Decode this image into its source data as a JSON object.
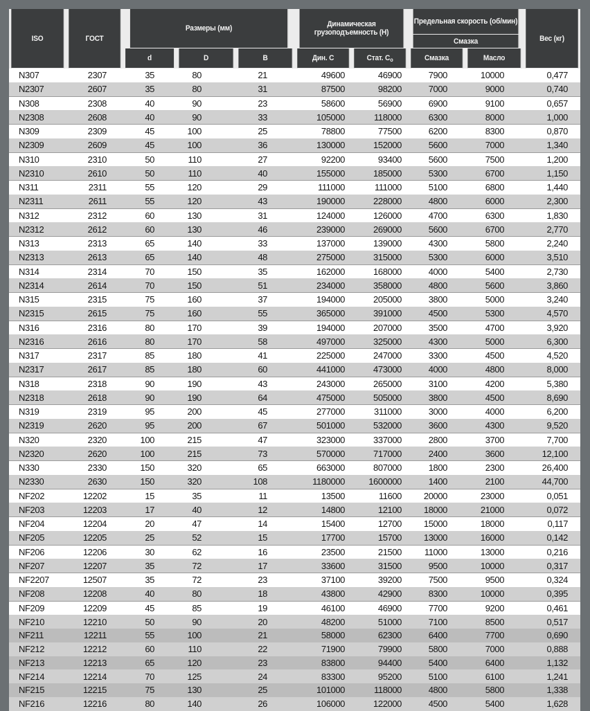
{
  "header": {
    "iso": "ISO",
    "gost": "ГОСТ",
    "dims": "Размеры (мм)",
    "d": "d",
    "D": "D",
    "B": "B",
    "load": "Динамическая грузоподъемность (Н)",
    "dyn": "Дин. C",
    "stat": "Стат. C",
    "stat_sub": "о",
    "speed": "Предельная скорость (об/мин)",
    "grease_group": "Смазка",
    "grease": "Смазка",
    "oil": "Масло",
    "weight": "Вес (кг)"
  },
  "rows": [
    [
      "N307",
      "2307",
      "35",
      "80",
      "21",
      "49600",
      "46900",
      "7900",
      "10000",
      "0,477"
    ],
    [
      "N2307",
      "2607",
      "35",
      "80",
      "31",
      "87500",
      "98200",
      "7000",
      "9000",
      "0,740"
    ],
    [
      "N308",
      "2308",
      "40",
      "90",
      "23",
      "58600",
      "56900",
      "6900",
      "9100",
      "0,657"
    ],
    [
      "N2308",
      "2608",
      "40",
      "90",
      "33",
      "105000",
      "118000",
      "6300",
      "8000",
      "1,000"
    ],
    [
      "N309",
      "2309",
      "45",
      "100",
      "25",
      "78800",
      "77500",
      "6200",
      "8300",
      "0,870"
    ],
    [
      "N2309",
      "2609",
      "45",
      "100",
      "36",
      "130000",
      "152000",
      "5600",
      "7000",
      "1,340"
    ],
    [
      "N310",
      "2310",
      "50",
      "110",
      "27",
      "92200",
      "93400",
      "5600",
      "7500",
      "1,200"
    ],
    [
      "N2310",
      "2610",
      "50",
      "110",
      "40",
      "155000",
      "185000",
      "5300",
      "6700",
      "1,150"
    ],
    [
      "N311",
      "2311",
      "55",
      "120",
      "29",
      "111000",
      "111000",
      "5100",
      "6800",
      "1,440"
    ],
    [
      "N2311",
      "2611",
      "55",
      "120",
      "43",
      "190000",
      "228000",
      "4800",
      "6000",
      "2,300"
    ],
    [
      "N312",
      "2312",
      "60",
      "130",
      "31",
      "124000",
      "126000",
      "4700",
      "6300",
      "1,830"
    ],
    [
      "N2312",
      "2612",
      "60",
      "130",
      "46",
      "239000",
      "269000",
      "5600",
      "6700",
      "2,770"
    ],
    [
      "N313",
      "2313",
      "65",
      "140",
      "33",
      "137000",
      "139000",
      "4300",
      "5800",
      "2,240"
    ],
    [
      "N2313",
      "2613",
      "65",
      "140",
      "48",
      "275000",
      "315000",
      "5300",
      "6000",
      "3,510"
    ],
    [
      "N314",
      "2314",
      "70",
      "150",
      "35",
      "162000",
      "168000",
      "4000",
      "5400",
      "2,730"
    ],
    [
      "N2314",
      "2614",
      "70",
      "150",
      "51",
      "234000",
      "358000",
      "4800",
      "5600",
      "3,860"
    ],
    [
      "N315",
      "2315",
      "75",
      "160",
      "37",
      "194000",
      "205000",
      "3800",
      "5000",
      "3,240"
    ],
    [
      "N2315",
      "2615",
      "75",
      "160",
      "55",
      "365000",
      "391000",
      "4500",
      "5300",
      "4,570"
    ],
    [
      "N316",
      "2316",
      "80",
      "170",
      "39",
      "194000",
      "207000",
      "3500",
      "4700",
      "3,920"
    ],
    [
      "N2316",
      "2616",
      "80",
      "170",
      "58",
      "497000",
      "325000",
      "4300",
      "5000",
      "6,300"
    ],
    [
      "N317",
      "2317",
      "85",
      "180",
      "41",
      "225000",
      "247000",
      "3300",
      "4500",
      "4,520"
    ],
    [
      "N2317",
      "2617",
      "85",
      "180",
      "60",
      "441000",
      "473000",
      "4000",
      "4800",
      "8,000"
    ],
    [
      "N318",
      "2318",
      "90",
      "190",
      "43",
      "243000",
      "265000",
      "3100",
      "4200",
      "5,380"
    ],
    [
      "N2318",
      "2618",
      "90",
      "190",
      "64",
      "475000",
      "505000",
      "3800",
      "4500",
      "8,690"
    ],
    [
      "N319",
      "2319",
      "95",
      "200",
      "45",
      "277000",
      "311000",
      "3000",
      "4000",
      "6,200"
    ],
    [
      "N2319",
      "2620",
      "95",
      "200",
      "67",
      "501000",
      "532000",
      "3600",
      "4300",
      "9,520"
    ],
    [
      "N320",
      "2320",
      "100",
      "215",
      "47",
      "323000",
      "337000",
      "2800",
      "3700",
      "7,700"
    ],
    [
      "N2320",
      "2620",
      "100",
      "215",
      "73",
      "570000",
      "717000",
      "2400",
      "3600",
      "12,100"
    ],
    [
      "N330",
      "2330",
      "150",
      "320",
      "65",
      "663000",
      "807000",
      "1800",
      "2300",
      "26,400"
    ],
    [
      "N2330",
      "2630",
      "150",
      "320",
      "108",
      "1180000",
      "1600000",
      "1400",
      "2100",
      "44,700"
    ],
    [
      "NF202",
      "12202",
      "15",
      "35",
      "11",
      "13500",
      "11600",
      "20000",
      "23000",
      "0,051"
    ],
    [
      "NF203",
      "12203",
      "17",
      "40",
      "12",
      "14800",
      "12100",
      "18000",
      "21000",
      "0,072"
    ],
    [
      "NF204",
      "12204",
      "20",
      "47",
      "14",
      "15400",
      "12700",
      "15000",
      "18000",
      "0,117"
    ],
    [
      "NF205",
      "12205",
      "25",
      "52",
      "15",
      "17700",
      "15700",
      "13000",
      "16000",
      "0,142"
    ],
    [
      "NF206",
      "12206",
      "30",
      "62",
      "16",
      "23500",
      "21500",
      "11000",
      "13000",
      "0,216"
    ],
    [
      "NF207",
      "12207",
      "35",
      "72",
      "17",
      "33600",
      "31500",
      "9500",
      "10000",
      "0,317"
    ],
    [
      "NF2207",
      "12507",
      "35",
      "72",
      "23",
      "37100",
      "39200",
      "7500",
      "9500",
      "0,324"
    ],
    [
      "NF208",
      "12208",
      "40",
      "80",
      "18",
      "43800",
      "42900",
      "8300",
      "10000",
      "0,395"
    ],
    [
      "NF209",
      "12209",
      "45",
      "85",
      "19",
      "46100",
      "46900",
      "7700",
      "9200",
      "0,461"
    ],
    [
      "NF210",
      "12210",
      "50",
      "90",
      "20",
      "48200",
      "51000",
      "7100",
      "8500",
      "0,517"
    ],
    [
      "NF211",
      "12211",
      "55",
      "100",
      "21",
      "58000",
      "62300",
      "6400",
      "7700",
      "0,690"
    ],
    [
      "NF212",
      "12212",
      "60",
      "110",
      "22",
      "71900",
      "79900",
      "5800",
      "7000",
      "0,888"
    ],
    [
      "NF213",
      "12213",
      "65",
      "120",
      "23",
      "83800",
      "94400",
      "5400",
      "6400",
      "1,132"
    ],
    [
      "NF214",
      "12214",
      "70",
      "125",
      "24",
      "83300",
      "95200",
      "5100",
      "6100",
      "1,241"
    ],
    [
      "NF215",
      "12215",
      "75",
      "130",
      "25",
      "101000",
      "118000",
      "4800",
      "5800",
      "1,338"
    ],
    [
      "NF216",
      "12216",
      "80",
      "140",
      "26",
      "106000",
      "122000",
      "4500",
      "5400",
      "1,628"
    ]
  ]
}
